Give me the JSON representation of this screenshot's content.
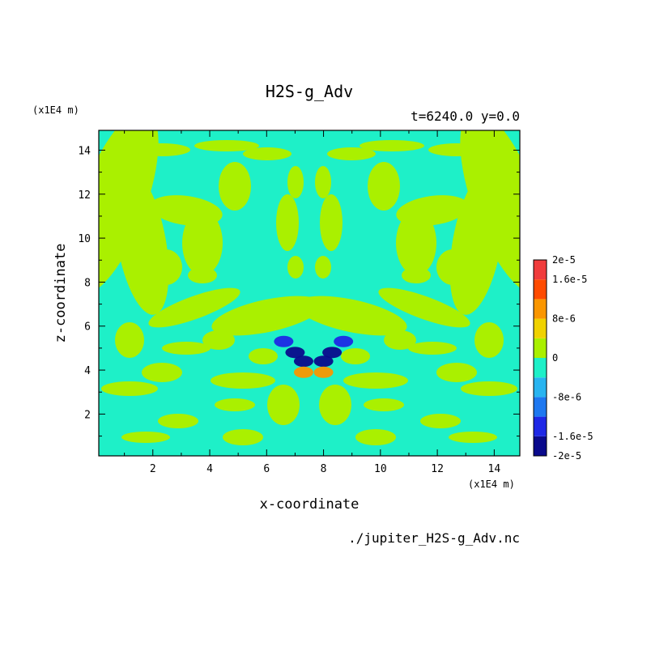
{
  "chart_data": {
    "type": "heatmap",
    "title": "H2S-g_Adv",
    "subtitle": "t=6240.0 y=0.0",
    "xlabel": "x-coordinate",
    "ylabel": "z-coordinate",
    "x_unit": "(x1E4 m)",
    "y_unit": "(x1E4 m)",
    "xlim": [
      0.1,
      14.9
    ],
    "ylim": [
      0.1,
      14.9
    ],
    "x_ticks": [
      "2",
      "4",
      "6",
      "8",
      "10",
      "12",
      "14"
    ],
    "y_ticks": [
      "2",
      "4",
      "6",
      "8",
      "10",
      "12",
      "14"
    ],
    "colorbar": {
      "levels": [
        -2e-05,
        -1.6e-05,
        -1.2e-05,
        -8e-06,
        -4e-06,
        0,
        4e-06,
        8e-06,
        1.2e-05,
        1.6e-05,
        2e-05
      ],
      "colors": [
        "#0a0a8c",
        "#1e28e6",
        "#1e78f0",
        "#28b4f0",
        "#1ef0c8",
        "#aaf000",
        "#f0d200",
        "#fa9600",
        "#ff4b00",
        "#f03c3c"
      ],
      "labels": [
        "2e-5",
        "1.6e-5",
        "8e-6",
        "0",
        "-8e-6",
        "-1.6e-5",
        "-2e-5"
      ],
      "label_values": [
        2e-05,
        1.6e-05,
        8e-06,
        0,
        -8e-06,
        -1.6e-05,
        -2e-05
      ]
    },
    "features": [
      {
        "x": 6.6,
        "z": 5.3,
        "value": -1.2e-05
      },
      {
        "x": 7.0,
        "z": 4.8,
        "value": -1.6e-05
      },
      {
        "x": 7.3,
        "z": 4.4,
        "value": -2e-05
      },
      {
        "x": 8.7,
        "z": 5.3,
        "value": -1.2e-05
      },
      {
        "x": 8.3,
        "z": 4.8,
        "value": -1.6e-05
      },
      {
        "x": 8.0,
        "z": 4.4,
        "value": -2e-05
      },
      {
        "x": 7.3,
        "z": 3.9,
        "value": 1.2e-05
      },
      {
        "x": 8.0,
        "z": 3.9,
        "value": 1.2e-05
      }
    ]
  },
  "footer": {
    "filename": "./jupiter_H2S-g_Adv.nc"
  }
}
